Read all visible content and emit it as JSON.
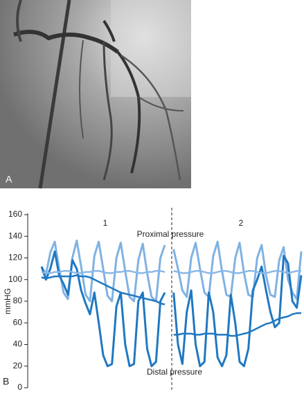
{
  "figure": {
    "panel_a_label": "A"
  },
  "chart_data": {
    "type": "line",
    "panel_label": "B",
    "y_label": "mmHG",
    "ylim": [
      0,
      160
    ],
    "yticks": [
      0,
      20,
      40,
      60,
      80,
      100,
      120,
      140,
      160
    ],
    "annotations": [
      "1",
      "2",
      "Proximal pressure",
      "Distal pressure"
    ],
    "series": [
      {
        "color": "#7fb2e3",
        "width": 3,
        "values": [
          112,
          105,
          125,
          135,
          110,
          88,
          82,
          120,
          136,
          112,
          86,
          80,
          122,
          135,
          110,
          85,
          80,
          120,
          134,
          108,
          84,
          80,
          118,
          133,
          106,
          84,
          80,
          120,
          132,
          null,
          128,
          110,
          90,
          84,
          120,
          134,
          110,
          88,
          84,
          122,
          135,
          108,
          86,
          84,
          120,
          134,
          106,
          86,
          84,
          120,
          132,
          104,
          86,
          84,
          118,
          130,
          100,
          88,
          82,
          126
        ]
      },
      {
        "color": "#1f78c1",
        "width": 3,
        "values": [
          112,
          100,
          110,
          126,
          104,
          96,
          86,
          118,
          110,
          90,
          78,
          68,
          88,
          60,
          30,
          20,
          22,
          75,
          88,
          40,
          20,
          22,
          80,
          88,
          36,
          20,
          24,
          80,
          88,
          null,
          88,
          40,
          22,
          70,
          90,
          40,
          20,
          24,
          88,
          70,
          28,
          20,
          30,
          86,
          60,
          24,
          20,
          36,
          90,
          100,
          112,
          90,
          70,
          56,
          60,
          122,
          115,
          80,
          74,
          104
        ]
      },
      {
        "color": "#8ab8e6",
        "width": 2.5,
        "values": [
          107,
          106,
          106,
          107,
          107,
          108,
          108,
          107,
          106,
          106,
          107,
          107,
          108,
          108,
          107,
          106,
          106,
          107,
          107,
          108,
          108,
          107,
          106,
          106,
          107,
          107,
          108,
          108,
          107,
          null,
          108,
          107,
          106,
          106,
          107,
          108,
          108,
          107,
          106,
          106,
          107,
          108,
          108,
          107,
          106,
          106,
          107,
          108,
          108,
          107,
          106,
          106,
          107,
          108,
          108,
          107,
          106,
          107,
          108,
          108
        ]
      },
      {
        "color": "#1f78c1",
        "width": 2.5,
        "values": [
          102,
          101,
          102,
          103,
          103,
          103,
          103,
          103,
          104,
          103,
          103,
          102,
          100,
          98,
          96,
          94,
          92,
          90,
          88,
          87,
          86,
          85,
          84,
          83,
          82,
          81,
          80,
          78,
          77,
          null,
          49,
          49,
          50,
          50,
          50,
          49,
          49,
          50,
          50,
          50,
          49,
          49,
          49,
          48,
          48,
          49,
          50,
          51,
          53,
          55,
          57,
          59,
          60,
          62,
          64,
          65,
          66,
          68,
          69,
          69
        ]
      }
    ]
  }
}
